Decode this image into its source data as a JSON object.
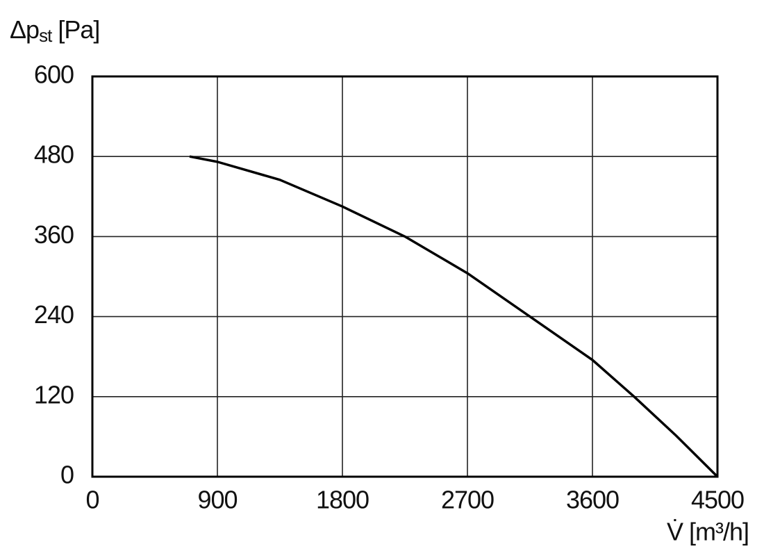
{
  "chart_data": {
    "type": "line",
    "ylabel": [
      "Δp",
      "st",
      " [Pa]"
    ],
    "xlabel": "V̇ [m³/h]",
    "x": [
      700,
      900,
      1350,
      1800,
      2250,
      2700,
      3150,
      3600,
      3900,
      4200,
      4500
    ],
    "series": [
      {
        "color": "#000000",
        "values": [
          480,
          472,
          445,
          405,
          360,
          305,
          240,
          175,
          120,
          62,
          0
        ]
      }
    ],
    "xlim": [
      0,
      4500
    ],
    "xticks": [
      0,
      900,
      1800,
      2700,
      3600,
      4500
    ],
    "ylim": [
      0,
      600
    ],
    "yticks": [
      0,
      120,
      240,
      360,
      480,
      600
    ],
    "grid": true
  }
}
